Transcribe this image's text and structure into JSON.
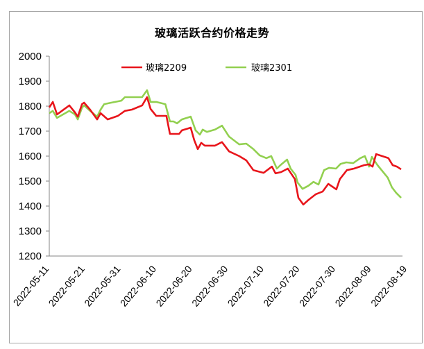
{
  "chart_data": {
    "type": "line",
    "title": "玻璃活跃合约价格走势",
    "xlabel": "",
    "ylabel": "",
    "ylim": [
      1200,
      2000
    ],
    "yticks": [
      1200,
      1300,
      1400,
      1500,
      1600,
      1700,
      1800,
      1900,
      2000
    ],
    "x_tick_labels": [
      "2022-05-11",
      "2022-05-21",
      "2022-05-31",
      "2022-06-10",
      "2022-06-20",
      "2022-06-30",
      "2022-07-10",
      "2022-07-20",
      "2022-07-30",
      "2022-08-09",
      "2022-08-19"
    ],
    "x_range": [
      "2022-05-11",
      "2022-08-19"
    ],
    "grid": false,
    "legend_position": "top-inside",
    "series": [
      {
        "name": "玻璃2209",
        "color": "#e8151b",
        "points": [
          [
            0.0,
            1795
          ],
          [
            1.0,
            1817
          ],
          [
            2.2,
            1767
          ],
          [
            5.7,
            1803
          ],
          [
            7.3,
            1775
          ],
          [
            8.1,
            1758
          ],
          [
            9.3,
            1808
          ],
          [
            9.9,
            1814
          ],
          [
            11.6,
            1786
          ],
          [
            13.6,
            1747
          ],
          [
            14.6,
            1772
          ],
          [
            16.6,
            1747
          ],
          [
            19.5,
            1761
          ],
          [
            21.5,
            1781
          ],
          [
            23.5,
            1786
          ],
          [
            26.4,
            1803
          ],
          [
            27.8,
            1836
          ],
          [
            28.8,
            1789
          ],
          [
            30.4,
            1761
          ],
          [
            33.3,
            1761
          ],
          [
            34.3,
            1689
          ],
          [
            36.9,
            1689
          ],
          [
            37.7,
            1703
          ],
          [
            40.2,
            1714
          ],
          [
            41.2,
            1664
          ],
          [
            42.2,
            1628
          ],
          [
            43.2,
            1653
          ],
          [
            44.2,
            1642
          ],
          [
            47.1,
            1642
          ],
          [
            49.1,
            1656
          ],
          [
            51.1,
            1619
          ],
          [
            54.0,
            1600
          ],
          [
            56.0,
            1583
          ],
          [
            58.0,
            1544
          ],
          [
            60.9,
            1533
          ],
          [
            63.3,
            1558
          ],
          [
            64.3,
            1531
          ],
          [
            65.9,
            1536
          ],
          [
            67.8,
            1550
          ],
          [
            69.8,
            1508
          ],
          [
            70.8,
            1433
          ],
          [
            72.2,
            1406
          ],
          [
            73.7,
            1425
          ],
          [
            75.7,
            1447
          ],
          [
            77.7,
            1458
          ],
          [
            79.3,
            1489
          ],
          [
            81.6,
            1467
          ],
          [
            82.6,
            1508
          ],
          [
            84.6,
            1544
          ],
          [
            86.6,
            1550
          ],
          [
            89.5,
            1564
          ],
          [
            90.9,
            1567
          ],
          [
            91.9,
            1558
          ],
          [
            92.9,
            1608
          ],
          [
            96.4,
            1592
          ],
          [
            97.6,
            1564
          ],
          [
            98.8,
            1558
          ],
          [
            100.0,
            1547
          ]
        ]
      },
      {
        "name": "玻璃2301",
        "color": "#92d050",
        "points": [
          [
            0.0,
            1772
          ],
          [
            1.0,
            1781
          ],
          [
            2.2,
            1753
          ],
          [
            5.7,
            1781
          ],
          [
            7.3,
            1767
          ],
          [
            8.1,
            1747
          ],
          [
            9.3,
            1794
          ],
          [
            9.9,
            1803
          ],
          [
            11.6,
            1781
          ],
          [
            13.6,
            1758
          ],
          [
            14.6,
            1786
          ],
          [
            15.6,
            1808
          ],
          [
            17.6,
            1814
          ],
          [
            20.5,
            1822
          ],
          [
            21.5,
            1836
          ],
          [
            23.5,
            1836
          ],
          [
            26.4,
            1836
          ],
          [
            27.8,
            1864
          ],
          [
            28.8,
            1817
          ],
          [
            30.4,
            1817
          ],
          [
            33.0,
            1808
          ],
          [
            34.3,
            1739
          ],
          [
            35.3,
            1739
          ],
          [
            36.3,
            1731
          ],
          [
            37.7,
            1747
          ],
          [
            40.2,
            1758
          ],
          [
            41.6,
            1703
          ],
          [
            42.8,
            1686
          ],
          [
            43.6,
            1706
          ],
          [
            44.8,
            1697
          ],
          [
            47.1,
            1706
          ],
          [
            49.1,
            1722
          ],
          [
            51.1,
            1678
          ],
          [
            54.0,
            1647
          ],
          [
            56.0,
            1650
          ],
          [
            58.0,
            1628
          ],
          [
            59.8,
            1603
          ],
          [
            61.7,
            1592
          ],
          [
            63.1,
            1600
          ],
          [
            64.7,
            1550
          ],
          [
            65.7,
            1564
          ],
          [
            67.6,
            1586
          ],
          [
            68.6,
            1550
          ],
          [
            70.0,
            1525
          ],
          [
            70.6,
            1494
          ],
          [
            72.0,
            1469
          ],
          [
            73.6,
            1481
          ],
          [
            75.1,
            1497
          ],
          [
            76.5,
            1486
          ],
          [
            78.1,
            1544
          ],
          [
            79.5,
            1553
          ],
          [
            81.5,
            1550
          ],
          [
            82.8,
            1569
          ],
          [
            84.4,
            1575
          ],
          [
            86.4,
            1572
          ],
          [
            88.4,
            1592
          ],
          [
            89.7,
            1600
          ],
          [
            90.9,
            1558
          ],
          [
            91.7,
            1597
          ],
          [
            93.3,
            1564
          ],
          [
            96.2,
            1514
          ],
          [
            97.4,
            1475
          ],
          [
            98.6,
            1453
          ],
          [
            100.0,
            1433
          ]
        ]
      }
    ],
    "x_note": "points are [percent-of-x-range, value]"
  },
  "legend": {
    "items": [
      {
        "label": "玻璃2209",
        "color": "#e8151b"
      },
      {
        "label": "玻璃2301",
        "color": "#92d050"
      }
    ]
  }
}
